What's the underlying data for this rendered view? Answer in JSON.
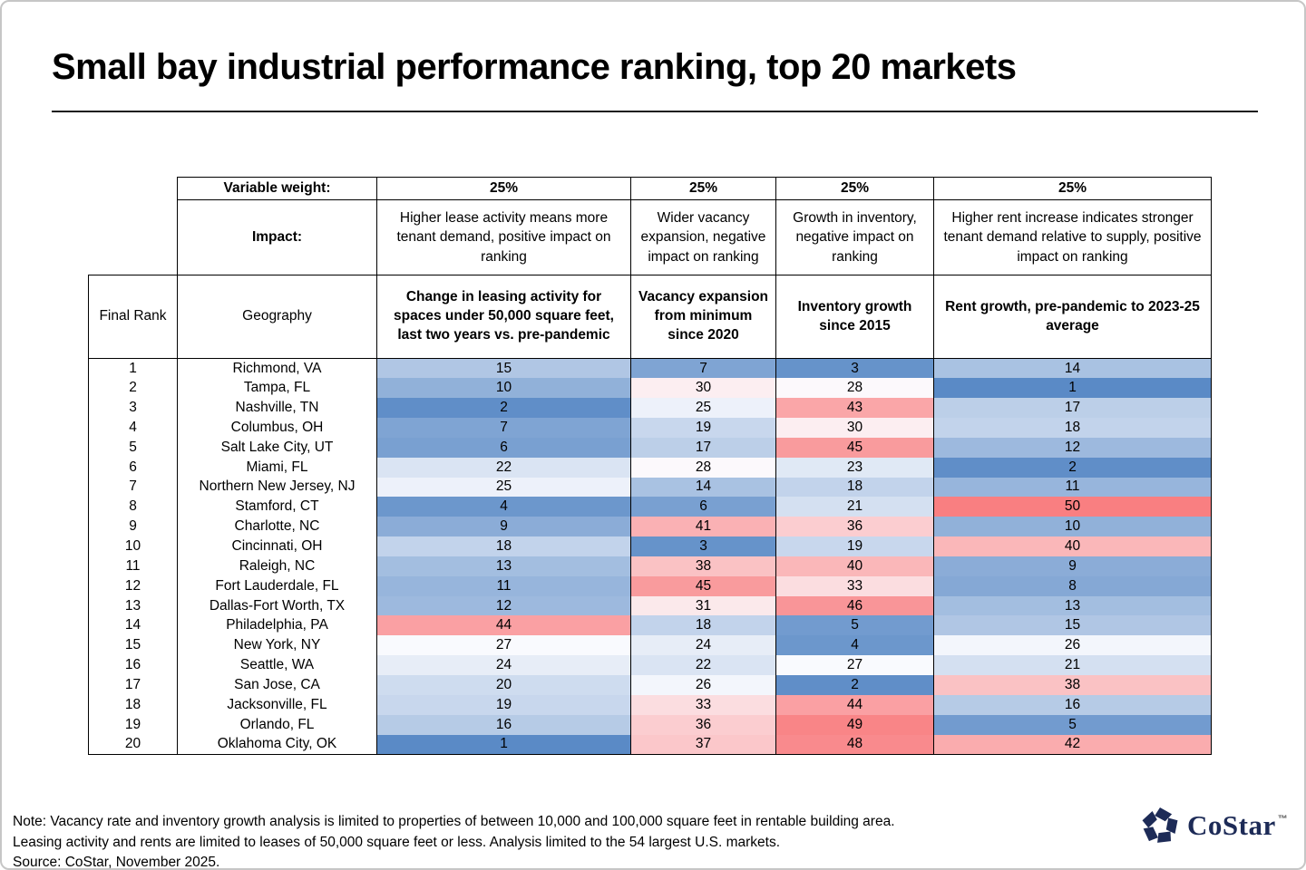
{
  "title": "Small bay industrial performance ranking, top 20 markets",
  "chart_data": {
    "type": "heatmap",
    "title": "Small bay industrial performance ranking, top 20 markets",
    "variable_weight_label": "Variable weight:",
    "impact_label": "Impact:",
    "weights": [
      "25%",
      "25%",
      "25%",
      "25%"
    ],
    "impacts": [
      "Higher lease activity means more tenant demand, positive impact on ranking",
      "Wider vacancy expansion, negative impact on ranking",
      "Growth in inventory, negative impact on ranking",
      "Higher rent increase indicates stronger tenant demand relative to supply, positive impact on ranking"
    ],
    "columns": [
      "Final Rank",
      "Geography",
      "Change in leasing activity for spaces under 50,000 square feet, last two years vs. pre-pandemic",
      "Vacancy expansion from minimum since 2020",
      "Inventory growth since 2015",
      "Rent growth, pre-pandemic to 2023-25 average"
    ],
    "rows": [
      {
        "rank": 1,
        "geography": "Richmond, VA",
        "values": [
          15,
          7,
          3,
          14
        ]
      },
      {
        "rank": 2,
        "geography": "Tampa, FL",
        "values": [
          10,
          30,
          28,
          1
        ]
      },
      {
        "rank": 3,
        "geography": "Nashville, TN",
        "values": [
          2,
          25,
          43,
          17
        ]
      },
      {
        "rank": 4,
        "geography": "Columbus, OH",
        "values": [
          7,
          19,
          30,
          18
        ]
      },
      {
        "rank": 5,
        "geography": "Salt Lake City, UT",
        "values": [
          6,
          17,
          45,
          12
        ]
      },
      {
        "rank": 6,
        "geography": "Miami, FL",
        "values": [
          22,
          28,
          23,
          2
        ]
      },
      {
        "rank": 7,
        "geography": "Northern New Jersey, NJ",
        "values": [
          25,
          14,
          18,
          11
        ]
      },
      {
        "rank": 8,
        "geography": "Stamford, CT",
        "values": [
          4,
          6,
          21,
          50
        ]
      },
      {
        "rank": 9,
        "geography": "Charlotte, NC",
        "values": [
          9,
          41,
          36,
          10
        ]
      },
      {
        "rank": 10,
        "geography": "Cincinnati, OH",
        "values": [
          18,
          3,
          19,
          40
        ]
      },
      {
        "rank": 11,
        "geography": "Raleigh, NC",
        "values": [
          13,
          38,
          40,
          9
        ]
      },
      {
        "rank": 12,
        "geography": "Fort Lauderdale, FL",
        "values": [
          11,
          45,
          33,
          8
        ]
      },
      {
        "rank": 13,
        "geography": "Dallas-Fort Worth, TX",
        "values": [
          12,
          31,
          46,
          13
        ]
      },
      {
        "rank": 14,
        "geography": "Philadelphia, PA",
        "values": [
          44,
          18,
          5,
          15
        ]
      },
      {
        "rank": 15,
        "geography": "New York, NY",
        "values": [
          27,
          24,
          4,
          26
        ]
      },
      {
        "rank": 16,
        "geography": "Seattle, WA",
        "values": [
          24,
          22,
          27,
          21
        ]
      },
      {
        "rank": 17,
        "geography": "San Jose, CA",
        "values": [
          20,
          26,
          2,
          38
        ]
      },
      {
        "rank": 18,
        "geography": "Jacksonville, FL",
        "values": [
          19,
          33,
          44,
          16
        ]
      },
      {
        "rank": 19,
        "geography": "Orlando, FL",
        "values": [
          16,
          36,
          49,
          5
        ]
      },
      {
        "rank": 20,
        "geography": "Oklahoma City, OK",
        "values": [
          1,
          37,
          48,
          42
        ]
      }
    ],
    "color_scale": {
      "min_value": 1,
      "mid_value": 27.5,
      "max_value": 54,
      "min_color": "#5A8AC6",
      "mid_color": "#FCFCFF",
      "max_color": "#F8696B"
    }
  },
  "footer": {
    "lines": [
      "Note: Vacancy rate and inventory growth analysis is limited to properties of between 10,000 and 100,000 square feet in rentable building area.",
      "Leasing activity and rents are limited to leases of 50,000 square feet or less. Analysis limited to the 54 largest U.S. markets.",
      "Source: CoStar, November 2025."
    ]
  },
  "logo": {
    "text": "CoStar",
    "tm": "™",
    "color": "#1d2b57"
  }
}
